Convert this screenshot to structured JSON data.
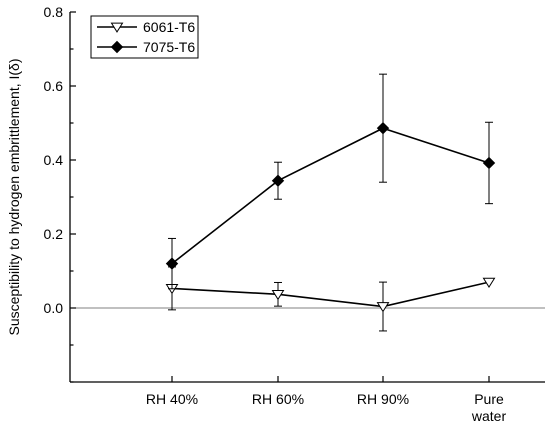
{
  "chart_data": {
    "type": "line",
    "ylabel": "Susceptibility to hydrogen embrittlement, I(δ)",
    "xlabel": "",
    "categories": [
      "RH 40%",
      "RH 60%",
      "RH 90%",
      "Pure water"
    ],
    "category_lines": [
      [
        "RH 40%"
      ],
      [
        "RH 60%"
      ],
      [
        "RH 90%"
      ],
      [
        "Pure",
        "water"
      ]
    ],
    "ylim": [
      -0.2,
      0.8
    ],
    "yticks": [
      0.0,
      0.2,
      0.4,
      0.6,
      0.8
    ],
    "ytick_labels": [
      "0.0",
      "0.2",
      "0.4",
      "0.6",
      "0.8"
    ],
    "reference_line_y": 0.0,
    "legend_position": "top-left",
    "series": [
      {
        "name": "6061-T6",
        "marker": "open-down-triangle",
        "color": "#000000",
        "values": [
          0.053,
          0.037,
          0.004,
          0.07
        ],
        "err_low": [
          0.058,
          0.032,
          0.066,
          0.0
        ],
        "err_high": [
          0.058,
          0.032,
          0.066,
          0.0
        ]
      },
      {
        "name": "7075-T6",
        "marker": "filled-diamond",
        "color": "#000000",
        "values": [
          0.12,
          0.344,
          0.486,
          0.392
        ],
        "err_low": [
          0.068,
          0.05,
          0.146,
          0.11
        ],
        "err_high": [
          0.068,
          0.05,
          0.146,
          0.11
        ]
      }
    ]
  }
}
